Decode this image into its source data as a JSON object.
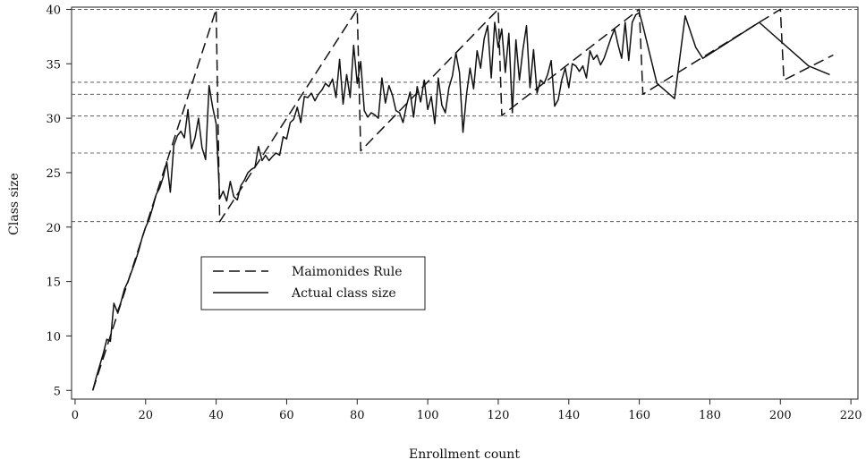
{
  "chart_data": {
    "type": "line",
    "xlabel": "Enrollment count",
    "ylabel": "Class size",
    "xlim": [
      -1,
      222
    ],
    "ylim": [
      4.2,
      40.2
    ],
    "xticks": [
      0,
      20,
      40,
      60,
      80,
      100,
      120,
      140,
      160,
      180,
      200,
      220
    ],
    "yticks": [
      5,
      10,
      15,
      20,
      25,
      30,
      35,
      40
    ],
    "reference_lines": [
      40,
      33.3,
      32.2,
      30.2,
      26.8,
      20.5
    ],
    "legend": {
      "position": "center-left"
    },
    "series": [
      {
        "name": "Maimonides Rule",
        "style": "dashed",
        "points": [
          [
            5,
            5
          ],
          [
            40,
            40
          ],
          [
            41,
            20.5
          ],
          [
            80,
            40
          ],
          [
            81,
            27
          ],
          [
            120,
            40
          ],
          [
            121,
            30.25
          ],
          [
            160,
            40
          ],
          [
            161,
            32.2
          ],
          [
            200,
            40
          ],
          [
            201,
            33.5
          ],
          [
            215,
            35.8
          ]
        ]
      },
      {
        "name": "Actual class size",
        "style": "solid",
        "points": [
          [
            5,
            5
          ],
          [
            6,
            6.2
          ],
          [
            7,
            7.3
          ],
          [
            8,
            8.4
          ],
          [
            9,
            9.7
          ],
          [
            10,
            9.5
          ],
          [
            11,
            13
          ],
          [
            12,
            12.2
          ],
          [
            13,
            13.1
          ],
          [
            14,
            14.3
          ],
          [
            15,
            15
          ],
          [
            16,
            15.9
          ],
          [
            17,
            16.8
          ],
          [
            18,
            17.8
          ],
          [
            19,
            19
          ],
          [
            20,
            20
          ],
          [
            21,
            20.7
          ],
          [
            22,
            21.8
          ],
          [
            23,
            23
          ],
          [
            24,
            23.6
          ],
          [
            25,
            24.6
          ],
          [
            26,
            26
          ],
          [
            27,
            23.2
          ],
          [
            28,
            27.5
          ],
          [
            29,
            28.4
          ],
          [
            30,
            28.8
          ],
          [
            31,
            28.2
          ],
          [
            32,
            30.8
          ],
          [
            33,
            27.2
          ],
          [
            34,
            28.2
          ],
          [
            35,
            30
          ],
          [
            36,
            27.3
          ],
          [
            37,
            26.2
          ],
          [
            38,
            33
          ],
          [
            39,
            31
          ],
          [
            40,
            29.5
          ],
          [
            41,
            22.6
          ],
          [
            42,
            23.3
          ],
          [
            43,
            22.4
          ],
          [
            44,
            24.2
          ],
          [
            45,
            22.8
          ],
          [
            46,
            22.5
          ],
          [
            47,
            23.8
          ],
          [
            48,
            24.3
          ],
          [
            49,
            25
          ],
          [
            50,
            25.3
          ],
          [
            51,
            25.5
          ],
          [
            52,
            27.4
          ],
          [
            53,
            26.1
          ],
          [
            54,
            26.6
          ],
          [
            55,
            26.1
          ],
          [
            56,
            26.5
          ],
          [
            57,
            26.8
          ],
          [
            58,
            26.6
          ],
          [
            59,
            28.3
          ],
          [
            60,
            28.1
          ],
          [
            61,
            29.6
          ],
          [
            62,
            29.9
          ],
          [
            63,
            31
          ],
          [
            64,
            29.6
          ],
          [
            65,
            32
          ],
          [
            66,
            31.9
          ],
          [
            67,
            32.3
          ],
          [
            68,
            31.6
          ],
          [
            69,
            32.2
          ],
          [
            70,
            32.6
          ],
          [
            71,
            33.2
          ],
          [
            72,
            32.9
          ],
          [
            73,
            33.6
          ],
          [
            74,
            31.9
          ],
          [
            75,
            35.4
          ],
          [
            76,
            31.3
          ],
          [
            77,
            34
          ],
          [
            78,
            31.9
          ],
          [
            79,
            36.7
          ],
          [
            80,
            33.2
          ],
          [
            81,
            35.2
          ],
          [
            82,
            30.7
          ],
          [
            83,
            30.1
          ],
          [
            84,
            30.5
          ],
          [
            85,
            30.3
          ],
          [
            86,
            30
          ],
          [
            87,
            33.7
          ],
          [
            88,
            31.4
          ],
          [
            89,
            33
          ],
          [
            90,
            32.1
          ],
          [
            91,
            30.7
          ],
          [
            92,
            30.5
          ],
          [
            93,
            29.6
          ],
          [
            94,
            31.2
          ],
          [
            95,
            32.4
          ],
          [
            96,
            30.1
          ],
          [
            97,
            32.9
          ],
          [
            98,
            31.5
          ],
          [
            99,
            33.5
          ],
          [
            100,
            30.8
          ],
          [
            101,
            32
          ],
          [
            102,
            29.5
          ],
          [
            103,
            33.7
          ],
          [
            104,
            31.2
          ],
          [
            105,
            30.5
          ],
          [
            106,
            32.8
          ],
          [
            107,
            33.9
          ],
          [
            108,
            36
          ],
          [
            109,
            34.2
          ],
          [
            110,
            28.7
          ],
          [
            111,
            32.2
          ],
          [
            112,
            34.6
          ],
          [
            113,
            32.7
          ],
          [
            114,
            36.2
          ],
          [
            115,
            34.6
          ],
          [
            116,
            37.3
          ],
          [
            117,
            38.5
          ],
          [
            118,
            33.7
          ],
          [
            119,
            38.8
          ],
          [
            120,
            36.5
          ],
          [
            121,
            38.2
          ],
          [
            122,
            34.2
          ],
          [
            123,
            37.8
          ],
          [
            124,
            30.5
          ],
          [
            125,
            37.2
          ],
          [
            126,
            33.5
          ],
          [
            127,
            36.3
          ],
          [
            128,
            38.5
          ],
          [
            129,
            32.8
          ],
          [
            130,
            36.3
          ],
          [
            131,
            32.3
          ],
          [
            132,
            33.5
          ],
          [
            133,
            33.2
          ],
          [
            134,
            34
          ],
          [
            135,
            35.3
          ],
          [
            136,
            31.1
          ],
          [
            137,
            31.7
          ],
          [
            138,
            33.5
          ],
          [
            139,
            34.6
          ],
          [
            140,
            32.8
          ],
          [
            141,
            35
          ],
          [
            142,
            34.8
          ],
          [
            143,
            34.3
          ],
          [
            144,
            34.8
          ],
          [
            145,
            33.7
          ],
          [
            146,
            36.2
          ],
          [
            147,
            35.4
          ],
          [
            148,
            35.8
          ],
          [
            149,
            34.9
          ],
          [
            150,
            35.5
          ],
          [
            152,
            37.4
          ],
          [
            153,
            38.2
          ],
          [
            154,
            36.7
          ],
          [
            155,
            35.5
          ],
          [
            156,
            38.8
          ],
          [
            157,
            35.3
          ],
          [
            158,
            38.8
          ],
          [
            159,
            39.5
          ],
          [
            160,
            39.7
          ],
          [
            161,
            38.5
          ],
          [
            165,
            33.2
          ],
          [
            170,
            31.8
          ],
          [
            173,
            39.4
          ],
          [
            176,
            36.5
          ],
          [
            178,
            35.5
          ],
          [
            194,
            38.8
          ],
          [
            208,
            34.8
          ],
          [
            214,
            34
          ]
        ]
      }
    ]
  }
}
